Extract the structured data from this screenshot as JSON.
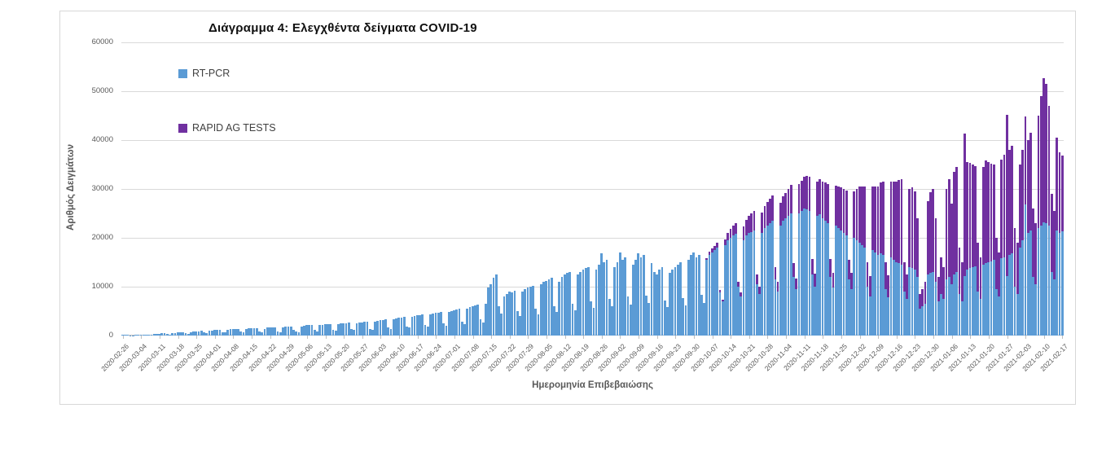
{
  "colors": {
    "pcr": "#5B9BD5",
    "rapid": "#7030A0",
    "gridline": "#D9D9D9",
    "axis_line": "#BFBFBF",
    "text_gray": "#595959",
    "title_text": "#111111",
    "frame_border": "#D7D7D7"
  },
  "chart_data": {
    "type": "bar",
    "subtype": "stacked-daily",
    "title": "Διάγραμμα 4: Ελεγχθέντα δείγματα COVID-19",
    "xlabel": "Ημερομηνία Επιβεβαιώσης",
    "ylabel": "Αριθμός Δειγμάτων",
    "ylim": [
      0,
      60000
    ],
    "grid": "horizontal",
    "legend_position": "inside-top-left",
    "y_ticks": [
      0,
      10000,
      20000,
      30000,
      40000,
      50000,
      60000
    ],
    "x_start_date": "2020-02-26",
    "x_tick_interval_days": 7,
    "x_tick_labels": [
      "2020-02-26",
      "2020-03-04",
      "2020-03-11",
      "2020-03-18",
      "2020-03-25",
      "2020-04-01",
      "2020-04-08",
      "2020-04-15",
      "2020-04-22",
      "2020-04-29",
      "2020-05-06",
      "2020-05-13",
      "2020-05-20",
      "2020-05-27",
      "2020-06-03",
      "2020-06-10",
      "2020-06-17",
      "2020-06-24",
      "2020-07-01",
      "2020-07-08",
      "2020-07-15",
      "2020-07-22",
      "2020-07-29",
      "2020-08-05",
      "2020-08-12",
      "2020-08-19",
      "2020-08-26",
      "2020-09-02",
      "2020-09-09",
      "2020-09-16",
      "2020-09-23",
      "2020-09-30",
      "2020-10-07",
      "2020-10-14",
      "2020-10-21",
      "2020-10-28",
      "2020-11-04",
      "2020-11-11",
      "2020-11-18",
      "2020-11-25",
      "2020-12-02",
      "2020-12-09",
      "2020-12-16",
      "2020-12-23",
      "2020-12-30",
      "2021-01-06",
      "2021-01-13",
      "2021-01-20",
      "2021-01-27",
      "2021-02-03",
      "2021-02-10",
      "2021-02-17"
    ],
    "series": [
      {
        "name": "RT-PCR",
        "color": "#5B9BD5",
        "values": [
          100,
          120,
          110,
          60,
          70,
          150,
          180,
          200,
          220,
          250,
          180,
          150,
          300,
          350,
          400,
          420,
          450,
          300,
          250,
          500,
          550,
          600,
          650,
          700,
          450,
          400,
          750,
          800,
          850,
          900,
          950,
          600,
          500,
          1000,
          1050,
          1100,
          1150,
          1200,
          700,
          600,
          1250,
          1300,
          1350,
          1300,
          1400,
          800,
          650,
          1350,
          1450,
          1500,
          1550,
          1500,
          850,
          700,
          1400,
          1600,
          1650,
          1700,
          1750,
          900,
          750,
          1600,
          1800,
          1850,
          1900,
          1200,
          900,
          750,
          1900,
          2000,
          2100,
          2150,
          2200,
          1100,
          900,
          2100,
          2250,
          2300,
          2350,
          2400,
          1200,
          1000,
          2300,
          2450,
          2500,
          2550,
          2600,
          1300,
          1100,
          2500,
          2700,
          2750,
          2800,
          2850,
          1400,
          1200,
          2800,
          3000,
          3100,
          3200,
          3300,
          1700,
          1400,
          3300,
          3500,
          3600,
          3700,
          3800,
          1900,
          1600,
          3800,
          4000,
          4100,
          4200,
          4300,
          2200,
          1800,
          4300,
          4500,
          4600,
          4700,
          4800,
          2500,
          2000,
          4800,
          5000,
          5200,
          5400,
          5500,
          2900,
          2300,
          5500,
          5800,
          6000,
          6200,
          6400,
          3400,
          2700,
          6500,
          9800,
          10500,
          11800,
          12500,
          6000,
          4500,
          8000,
          8500,
          9000,
          8800,
          9200,
          5000,
          4000,
          9000,
          9500,
          9800,
          10000,
          10200,
          5500,
          4400,
          10500,
          11000,
          11200,
          11500,
          11800,
          6000,
          4800,
          11000,
          12000,
          12500,
          12800,
          13000,
          6500,
          5200,
          12500,
          13000,
          13500,
          13800,
          14000,
          7000,
          5600,
          13500,
          14500,
          16800,
          15000,
          15500,
          7500,
          6000,
          14000,
          15000,
          17000,
          15500,
          16000,
          8000,
          6400,
          14500,
          15500,
          16800,
          16000,
          16500,
          8200,
          6600,
          14800,
          13000,
          12500,
          13500,
          14000,
          7200,
          5800,
          12800,
          13500,
          14000,
          14500,
          15000,
          7600,
          6100,
          15500,
          16500,
          17000,
          16000,
          16500,
          8300,
          6600,
          15500,
          16500,
          17000,
          17500,
          18000,
          8800,
          7000,
          18500,
          19500,
          20000,
          20500,
          20800,
          10000,
          8000,
          19500,
          20500,
          21000,
          21200,
          21500,
          10500,
          8500,
          21000,
          22000,
          22500,
          23000,
          23500,
          11500,
          9000,
          22500,
          23500,
          24000,
          24500,
          25000,
          12000,
          9500,
          25000,
          25500,
          26000,
          25800,
          25500,
          12500,
          10000,
          24500,
          24800,
          24000,
          23500,
          23000,
          12000,
          9800,
          22500,
          22000,
          21500,
          21000,
          20500,
          11500,
          9500,
          20000,
          19500,
          19000,
          18500,
          18000,
          10000,
          8000,
          17500,
          17000,
          16500,
          16800,
          16500,
          9500,
          7800,
          16000,
          15500,
          15000,
          14800,
          14500,
          9000,
          7500,
          14000,
          13800,
          13500,
          12000,
          5500,
          6000,
          6500,
          12500,
          12800,
          13000,
          11000,
          7000,
          8500,
          7500,
          11500,
          12000,
          10500,
          12500,
          13000,
          8500,
          7000,
          12100,
          13500,
          13800,
          14000,
          14200,
          9000,
          7500,
          14500,
          14800,
          15000,
          15200,
          15500,
          9500,
          8000,
          15800,
          16000,
          12200,
          16500,
          16800,
          10000,
          8500,
          18000,
          19500,
          26800,
          21000,
          21500,
          12000,
          10500,
          22000,
          22500,
          23200,
          23000,
          22500,
          13000,
          11500,
          21500,
          21000,
          21300
        ]
      },
      {
        "name": "RAPID AG TESTS",
        "color": "#7030A0",
        "values": [
          0,
          0,
          0,
          0,
          0,
          0,
          0,
          0,
          0,
          0,
          0,
          0,
          0,
          0,
          0,
          0,
          0,
          0,
          0,
          0,
          0,
          0,
          0,
          0,
          0,
          0,
          0,
          0,
          0,
          0,
          0,
          0,
          0,
          0,
          0,
          0,
          0,
          0,
          0,
          0,
          0,
          0,
          0,
          0,
          0,
          0,
          0,
          0,
          0,
          0,
          0,
          0,
          0,
          0,
          0,
          0,
          0,
          0,
          0,
          0,
          0,
          0,
          0,
          0,
          0,
          0,
          0,
          0,
          0,
          0,
          0,
          0,
          0,
          0,
          0,
          0,
          0,
          0,
          0,
          0,
          0,
          0,
          0,
          0,
          0,
          0,
          0,
          0,
          0,
          0,
          0,
          0,
          0,
          0,
          0,
          0,
          0,
          0,
          0,
          0,
          0,
          0,
          0,
          0,
          0,
          0,
          0,
          0,
          0,
          0,
          0,
          0,
          0,
          0,
          0,
          0,
          0,
          0,
          0,
          0,
          0,
          0,
          0,
          0,
          0,
          0,
          0,
          0,
          0,
          0,
          0,
          0,
          0,
          0,
          0,
          0,
          0,
          0,
          0,
          0,
          0,
          0,
          0,
          0,
          0,
          0,
          0,
          0,
          0,
          0,
          0,
          0,
          0,
          0,
          0,
          0,
          0,
          0,
          0,
          0,
          0,
          0,
          0,
          0,
          0,
          0,
          0,
          0,
          0,
          0,
          0,
          0,
          0,
          0,
          0,
          0,
          0,
          0,
          0,
          0,
          0,
          0,
          0,
          0,
          0,
          0,
          0,
          0,
          0,
          0,
          0,
          0,
          0,
          0,
          0,
          0,
          0,
          0,
          0,
          0,
          0,
          0,
          0,
          0,
          0,
          0,
          0,
          0,
          0,
          0,
          0,
          0,
          0,
          0,
          0,
          0,
          0,
          0,
          0,
          0,
          0,
          0,
          400,
          600,
          800,
          900,
          1000,
          500,
          400,
          1200,
          1500,
          1800,
          2000,
          2200,
          1000,
          800,
          2800,
          3200,
          3500,
          3800,
          4000,
          2000,
          1500,
          4200,
          4500,
          4800,
          5000,
          5200,
          2500,
          2000,
          4600,
          5000,
          5200,
          5500,
          5800,
          2800,
          2200,
          6000,
          6200,
          6500,
          6800,
          7000,
          3200,
          2600,
          7000,
          7200,
          7500,
          7800,
          8000,
          3600,
          3000,
          8200,
          8500,
          8800,
          9000,
          9200,
          4000,
          3400,
          9500,
          10500,
          11500,
          12000,
          12500,
          5000,
          4200,
          13000,
          13500,
          14000,
          14500,
          15000,
          5500,
          4600,
          15500,
          16000,
          16500,
          17000,
          17500,
          6000,
          5000,
          16000,
          16500,
          16000,
          12000,
          3000,
          3500,
          4500,
          15000,
          16500,
          17000,
          13000,
          5000,
          7500,
          6500,
          18500,
          20000,
          16500,
          21000,
          21500,
          9500,
          8000,
          29200,
          22000,
          21500,
          21000,
          20500,
          10000,
          8500,
          20000,
          21000,
          20500,
          20000,
          19500,
          10500,
          9000,
          20200,
          21000,
          33000,
          21500,
          22000,
          12000,
          10500,
          17000,
          18500,
          18100,
          19000,
          20000,
          14000,
          12500,
          23000,
          26500,
          29500,
          28500,
          24500,
          16000,
          14000,
          19000,
          16500,
          15500
        ]
      }
    ]
  }
}
